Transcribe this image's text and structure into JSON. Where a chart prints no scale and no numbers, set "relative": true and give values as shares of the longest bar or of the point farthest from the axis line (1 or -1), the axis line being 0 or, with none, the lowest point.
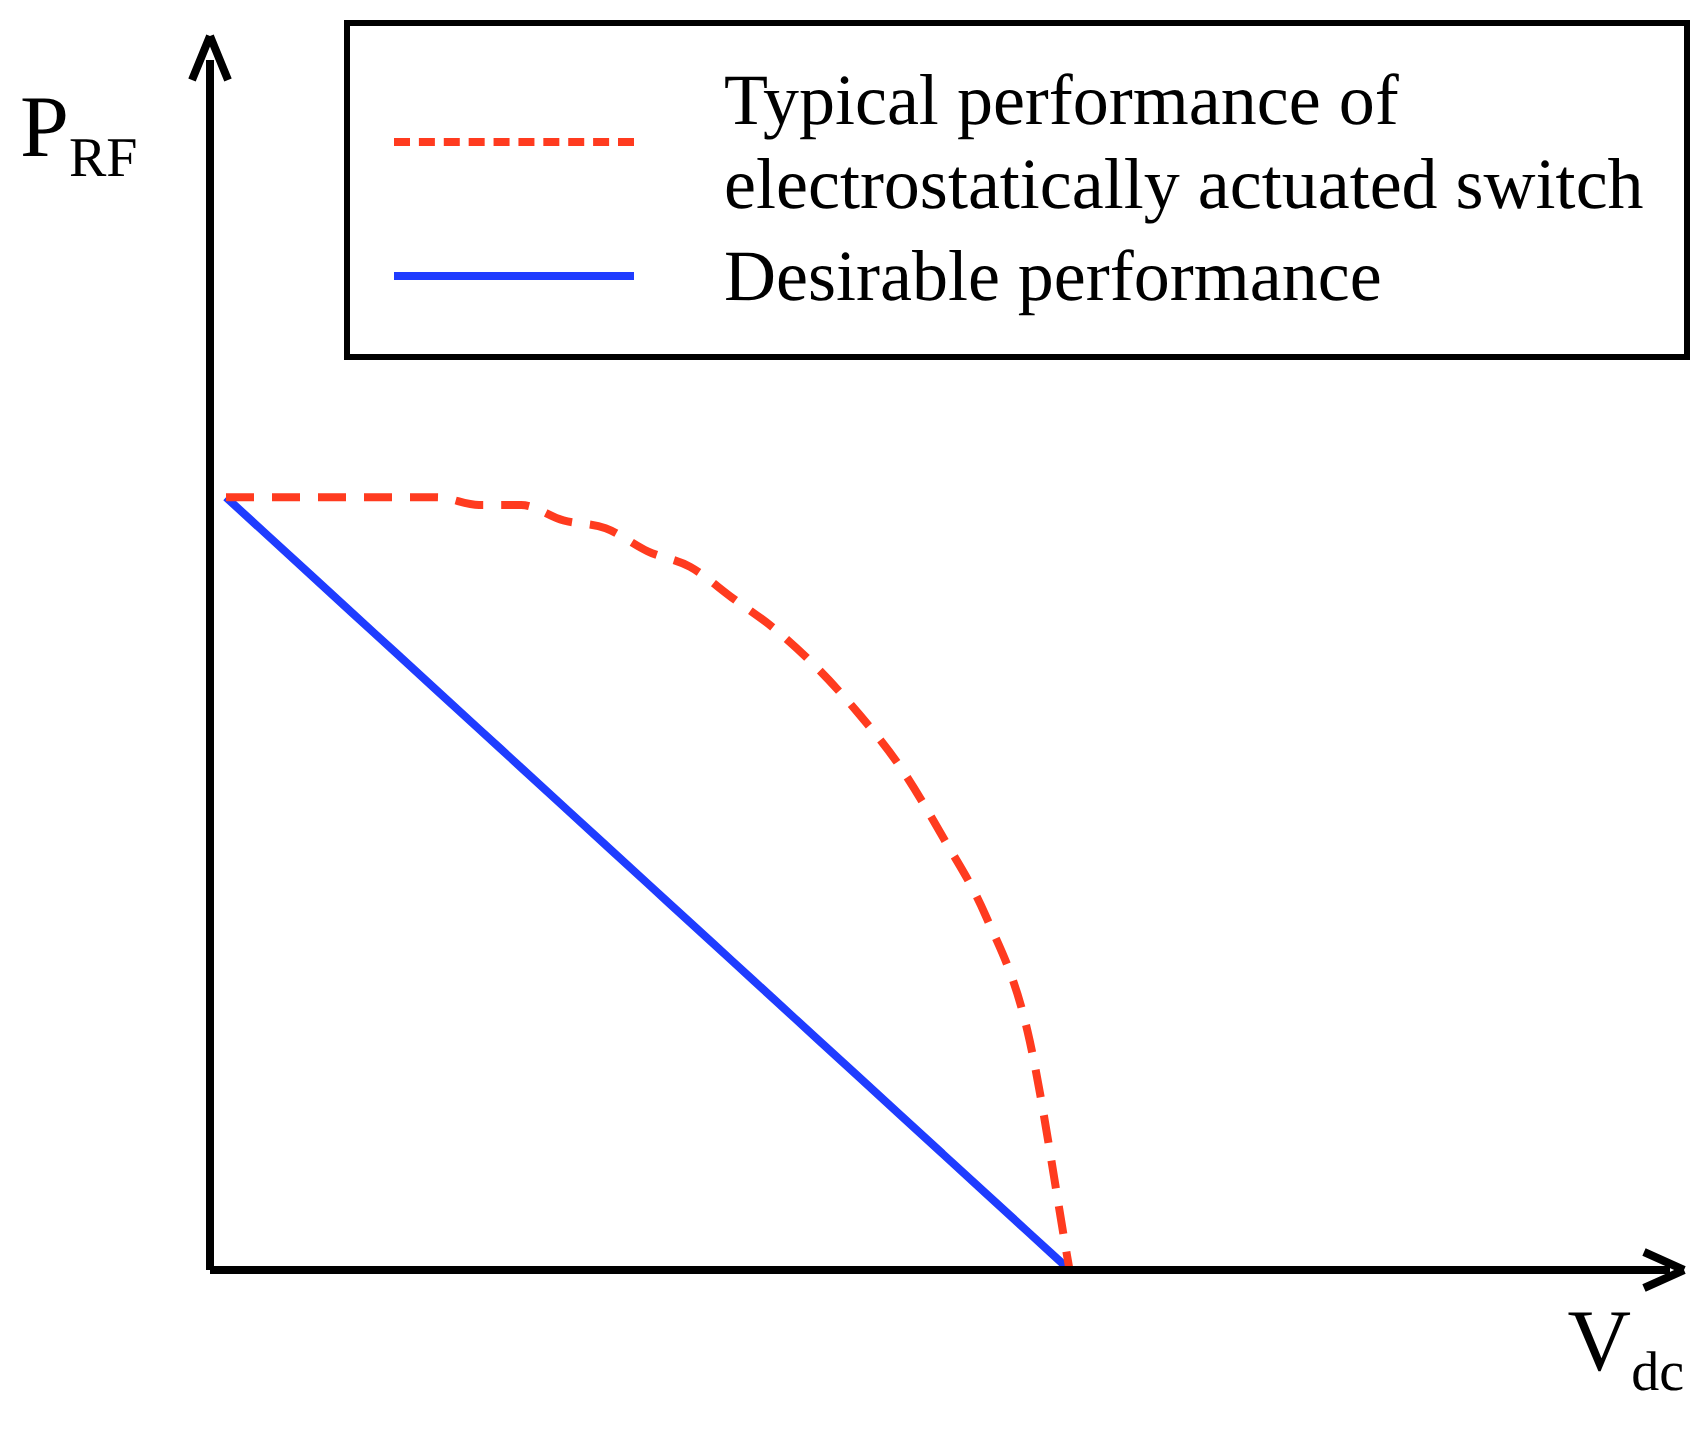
{
  "chart_data": {
    "type": "line",
    "relative": true,
    "xlabel": "V$_{dc}$",
    "ylabel": "P$_{RF}$",
    "legend": "top right",
    "grid": false,
    "marker": "none",
    "categories": [
      null,
      null,
      null,
      null,
      null,
      null,
      null,
      null,
      null,
      null,
      null,
      null,
      null,
      null,
      null,
      null,
      null,
      null,
      null,
      null,
      null,
      null,
      null,
      null,
      null,
      null,
      null,
      null,
      null,
      null,
      null,
      null,
      null,
      null,
      null
    ],
    "series": [
      {
        "name": "Typical performance of electrostatically actuated switch",
        "color": "#ff3b1f",
        "line_style": "dashed",
        "values": [
          1,
          1,
          1,
          1,
          1,
          1,
          0.99,
          0.99,
          0.97,
          0.96,
          0.93,
          0.91,
          0.87,
          0.83,
          0.78,
          0.72,
          0.65,
          0.56,
          0.46,
          0.31,
          0,
          null,
          null,
          null,
          null,
          null,
          null,
          null,
          null,
          null,
          null,
          null,
          null,
          null,
          null
        ]
      },
      {
        "name": "Desirable performance",
        "color": "#1f3cff",
        "line_style": "solid",
        "values": [
          1,
          0.95,
          0.9,
          0.85,
          0.8,
          0.75,
          0.7,
          0.65,
          0.6,
          0.55,
          0.5,
          0.45,
          0.4,
          0.35,
          0.3,
          0.25,
          0.2,
          0.15,
          0.1,
          0.05,
          0,
          null,
          null,
          null,
          null,
          null,
          null,
          null,
          null,
          null,
          null,
          null,
          null,
          null,
          null
        ]
      }
    ]
  }
}
